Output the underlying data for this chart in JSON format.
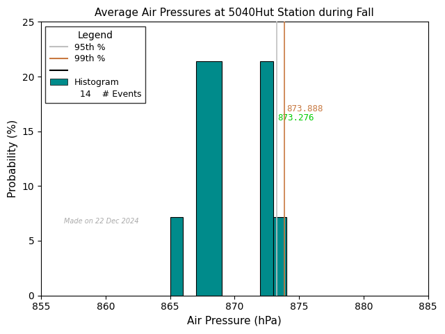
{
  "title": "Average Air Pressures at 5040Hut Station during Fall",
  "xlabel": "Air Pressure (hPa)",
  "ylabel": "Probability (%)",
  "xlim": [
    855,
    885
  ],
  "ylim": [
    0,
    25
  ],
  "xticks": [
    855,
    860,
    865,
    870,
    875,
    880,
    885
  ],
  "yticks": [
    0,
    5,
    10,
    15,
    20,
    25
  ],
  "bar_lefts": [
    865,
    867,
    868,
    872,
    873
  ],
  "bar_heights": [
    7.14,
    21.43,
    21.43,
    21.43,
    7.14
  ],
  "bar_color": "#008B8B",
  "bar_edgecolor": "#000000",
  "bar_width": 1.0,
  "pct_95": 873.276,
  "pct_99": 873.888,
  "pct_95_color": "#c0c0c0",
  "pct_99_color": "#c87941",
  "pct_95_label": "95th %",
  "pct_99_label": "99th %",
  "histogram_label": "Histogram",
  "n_events": 14,
  "n_events_label": "# Events",
  "legend_title": "Legend",
  "watermark": "Made on 22 Dec 2024",
  "watermark_color": "#aaaaaa",
  "bg_color": "#ffffff",
  "title_fontsize": 11,
  "axis_fontsize": 11,
  "tick_fontsize": 10,
  "legend_fontsize": 9,
  "annotation_fontsize": 9,
  "annotation_99_color": "#c87941",
  "annotation_95_color": "#00cc00"
}
